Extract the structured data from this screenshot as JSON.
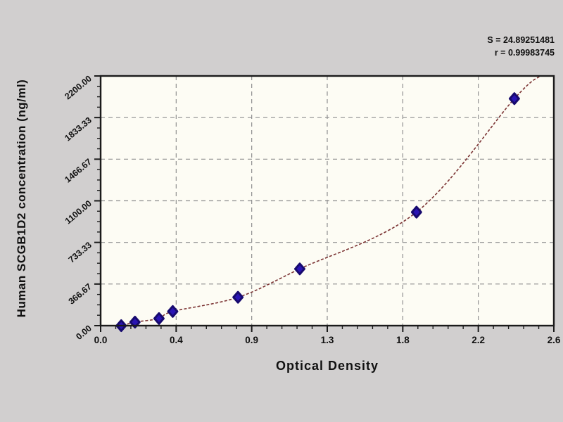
{
  "stats": {
    "s_line": "S = 24.89251481",
    "r_line": "r = 0.99983745"
  },
  "chart_data": {
    "type": "scatter",
    "title": "",
    "xlabel": "Optical Density",
    "ylabel": "Human SCGB1D2 concentration (ng/ml)",
    "x_min": 0,
    "x_max": 2.64,
    "y_min": 0,
    "y_max": 2200,
    "x_ticks": [
      {
        "value": 0.0,
        "label": "0.0"
      },
      {
        "value": 0.44,
        "label": "0.4"
      },
      {
        "value": 0.88,
        "label": "0.9"
      },
      {
        "value": 1.32,
        "label": "1.3"
      },
      {
        "value": 1.76,
        "label": "1.8"
      },
      {
        "value": 2.2,
        "label": "2.2"
      },
      {
        "value": 2.64,
        "label": "2.6"
      }
    ],
    "y_ticks": [
      {
        "value": 0,
        "label": "0.00"
      },
      {
        "value": 366.67,
        "label": "366.67"
      },
      {
        "value": 733.33,
        "label": "733.33"
      },
      {
        "value": 1100,
        "label": "1100.00"
      },
      {
        "value": 1466.67,
        "label": "1466.67"
      },
      {
        "value": 1833.33,
        "label": "1833.33"
      },
      {
        "value": 2200,
        "label": "2200.00"
      }
    ],
    "x_minor_per_interval": 4,
    "y_minor_per_interval": 3,
    "grid": "dashed",
    "legend": "none",
    "points": [
      {
        "od": 0.12,
        "concentration": 0
      },
      {
        "od": 0.2,
        "concentration": 31.25
      },
      {
        "od": 0.34,
        "concentration": 62.5
      },
      {
        "od": 0.42,
        "concentration": 125
      },
      {
        "od": 0.8,
        "concentration": 250
      },
      {
        "od": 1.16,
        "concentration": 500
      },
      {
        "od": 1.84,
        "concentration": 1000
      },
      {
        "od": 2.41,
        "concentration": 2000
      }
    ],
    "curve": {
      "description": "fitted standard regression curve through points",
      "start": {
        "od": 0.05,
        "concentration": 0
      },
      "end": {
        "od": 2.56,
        "concentration": 2200
      }
    },
    "colors": {
      "background": "#d1cfcf",
      "plot_background": "#fdfcf4",
      "frame": "#1b1b1b",
      "grid": "#8f8f8f",
      "tick": "#1b1b1b",
      "marker": "#2a14b4",
      "marker_edge": "#170a6e",
      "curve": "#7b3333",
      "text": "#111111"
    }
  }
}
